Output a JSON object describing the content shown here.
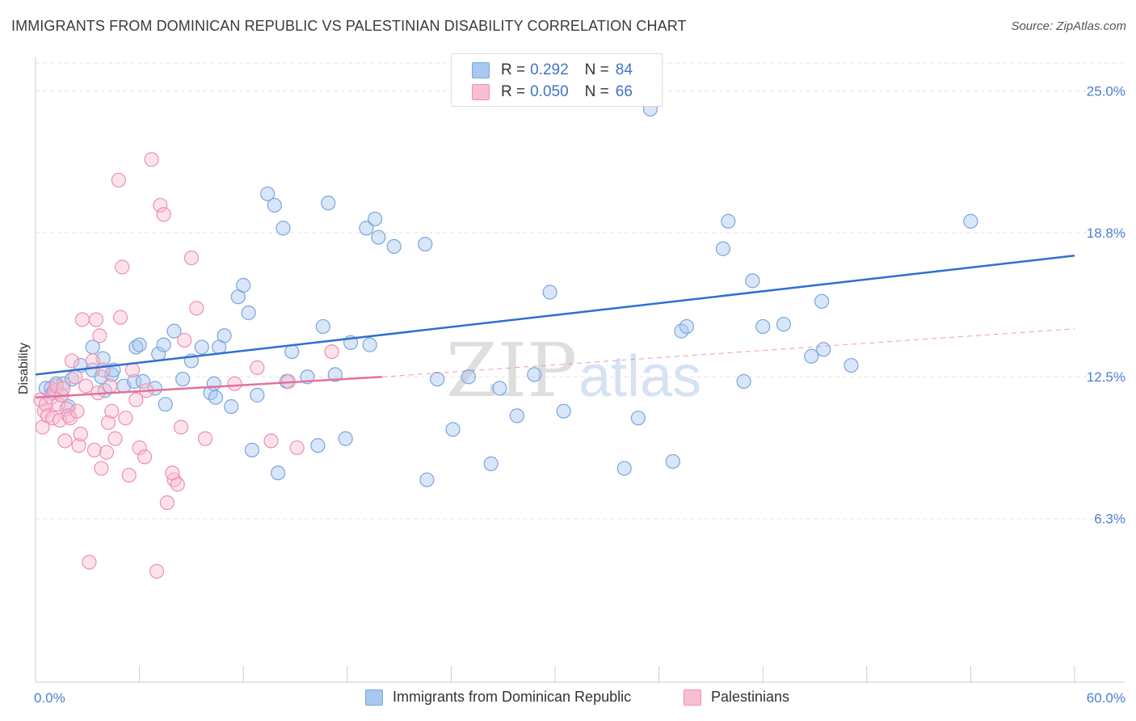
{
  "title": "IMMIGRANTS FROM DOMINICAN REPUBLIC VS PALESTINIAN DISABILITY CORRELATION CHART",
  "source": "Source: ZipAtlas.com",
  "watermark": {
    "zip": "ZIP",
    "atlas": "atlas"
  },
  "legend": {
    "rows": [
      {
        "r_label": "R =",
        "r_value": "0.292",
        "n_label": "N =",
        "n_value": "84",
        "color": "#a9c8f0",
        "border": "#7aa5df"
      },
      {
        "r_label": "R =",
        "r_value": "0.050",
        "n_label": "N =",
        "n_value": "66",
        "color": "#f8bfd2",
        "border": "#ee8fb1"
      }
    ]
  },
  "bottom_legend": [
    {
      "label": "Immigrants from Dominican Republic",
      "color": "#a9c8f0",
      "border": "#7aa5df"
    },
    {
      "label": "Palestinians",
      "color": "#f8bfd2",
      "border": "#ee8fb1"
    }
  ],
  "chart_data": {
    "type": "scatter",
    "title": "IMMIGRANTS FROM DOMINICAN REPUBLIC VS PALESTINIAN DISABILITY CORRELATION CHART",
    "xlabel": "",
    "ylabel": "Disability",
    "xlim": [
      0,
      60
    ],
    "ylim": [
      0,
      26.5
    ],
    "x_tick_labels": [
      "0.0%",
      "60.0%"
    ],
    "y_ticks": [
      6.3,
      12.5,
      18.8,
      25.0
    ],
    "y_tick_labels": [
      "6.3%",
      "12.5%",
      "18.8%",
      "25.0%"
    ],
    "grid": "horizontal dashed",
    "legend_position": "top-center",
    "series": [
      {
        "name": "Immigrants from Dominican Republic",
        "color": "#7aa5df",
        "fill": "#a9c8f0",
        "trend": {
          "x0": 0,
          "y0": 12.6,
          "x1": 60,
          "y1": 17.8,
          "color": "#2e6fd0"
        },
        "points": [
          [
            0.6,
            12.0
          ],
          [
            0.9,
            12.0
          ],
          [
            1.0,
            11.8
          ],
          [
            1.2,
            12.2
          ],
          [
            1.5,
            11.7
          ],
          [
            1.6,
            12.2
          ],
          [
            1.9,
            11.2
          ],
          [
            2.1,
            12.4
          ],
          [
            2.6,
            13.0
          ],
          [
            3.3,
            12.8
          ],
          [
            3.3,
            13.8
          ],
          [
            3.8,
            12.5
          ],
          [
            3.9,
            13.3
          ],
          [
            4.0,
            11.9
          ],
          [
            4.4,
            12.6
          ],
          [
            4.5,
            12.8
          ],
          [
            5.1,
            12.1
          ],
          [
            5.7,
            12.3
          ],
          [
            5.8,
            13.8
          ],
          [
            6.0,
            13.9
          ],
          [
            6.2,
            12.3
          ],
          [
            6.9,
            12.0
          ],
          [
            7.1,
            13.5
          ],
          [
            7.4,
            13.9
          ],
          [
            7.5,
            11.3
          ],
          [
            8.0,
            14.5
          ],
          [
            8.5,
            12.4
          ],
          [
            9.0,
            13.2
          ],
          [
            9.6,
            13.8
          ],
          [
            10.1,
            11.8
          ],
          [
            10.3,
            12.2
          ],
          [
            10.4,
            11.6
          ],
          [
            10.6,
            13.8
          ],
          [
            10.9,
            14.3
          ],
          [
            11.3,
            11.2
          ],
          [
            11.7,
            16.0
          ],
          [
            12.0,
            16.5
          ],
          [
            12.3,
            15.3
          ],
          [
            12.5,
            9.3
          ],
          [
            12.8,
            11.7
          ],
          [
            13.4,
            20.5
          ],
          [
            13.8,
            20.0
          ],
          [
            14.0,
            8.3
          ],
          [
            14.3,
            19.0
          ],
          [
            14.5,
            12.3
          ],
          [
            14.8,
            13.6
          ],
          [
            15.7,
            12.5
          ],
          [
            16.3,
            9.5
          ],
          [
            16.6,
            14.7
          ],
          [
            16.9,
            20.1
          ],
          [
            17.3,
            12.6
          ],
          [
            17.9,
            9.8
          ],
          [
            18.2,
            14.0
          ],
          [
            19.1,
            19.0
          ],
          [
            19.3,
            13.9
          ],
          [
            19.6,
            19.4
          ],
          [
            19.8,
            18.6
          ],
          [
            20.7,
            18.2
          ],
          [
            22.5,
            18.3
          ],
          [
            22.6,
            8.0
          ],
          [
            23.2,
            12.4
          ],
          [
            24.1,
            10.2
          ],
          [
            25.0,
            12.5
          ],
          [
            26.3,
            8.7
          ],
          [
            26.8,
            12.0
          ],
          [
            27.8,
            10.8
          ],
          [
            28.8,
            12.6
          ],
          [
            29.7,
            16.2
          ],
          [
            30.5,
            11.0
          ],
          [
            34.0,
            8.5
          ],
          [
            34.8,
            10.7
          ],
          [
            36.8,
            8.8
          ],
          [
            37.3,
            14.5
          ],
          [
            37.6,
            14.7
          ],
          [
            39.7,
            18.1
          ],
          [
            40.0,
            19.3
          ],
          [
            40.9,
            12.3
          ],
          [
            41.4,
            16.7
          ],
          [
            42.0,
            14.7
          ],
          [
            43.2,
            14.8
          ],
          [
            44.8,
            13.4
          ],
          [
            45.4,
            15.8
          ],
          [
            45.5,
            13.7
          ],
          [
            47.1,
            13.0
          ],
          [
            54.0,
            19.3
          ],
          [
            35.5,
            24.2
          ]
        ]
      },
      {
        "name": "Palestinians",
        "color": "#ee8fb1",
        "fill": "#f8bfd2",
        "trend": {
          "x0": 0,
          "y0": 11.6,
          "x1": 20,
          "y1": 12.5,
          "color": "#e4709c"
        },
        "trend_dashed": {
          "x0": 20,
          "y0": 12.5,
          "x1": 60,
          "y1": 14.6,
          "color": "#e4709c"
        },
        "points": [
          [
            0.3,
            11.5
          ],
          [
            0.4,
            10.3
          ],
          [
            0.5,
            11.0
          ],
          [
            0.6,
            11.3
          ],
          [
            0.7,
            10.8
          ],
          [
            0.9,
            11.6
          ],
          [
            1.0,
            10.7
          ],
          [
            1.1,
            11.9
          ],
          [
            1.2,
            12.1
          ],
          [
            1.3,
            11.3
          ],
          [
            1.4,
            10.6
          ],
          [
            1.5,
            11.7
          ],
          [
            1.6,
            12.0
          ],
          [
            1.7,
            9.7
          ],
          [
            1.8,
            11.1
          ],
          [
            1.9,
            10.8
          ],
          [
            2.0,
            10.7
          ],
          [
            2.1,
            13.2
          ],
          [
            2.3,
            12.5
          ],
          [
            2.4,
            11.0
          ],
          [
            2.5,
            9.5
          ],
          [
            2.6,
            10.0
          ],
          [
            2.7,
            15.0
          ],
          [
            2.9,
            12.1
          ],
          [
            3.1,
            4.4
          ],
          [
            3.3,
            13.2
          ],
          [
            3.4,
            9.3
          ],
          [
            3.5,
            15.0
          ],
          [
            3.6,
            11.8
          ],
          [
            3.7,
            14.3
          ],
          [
            3.8,
            8.5
          ],
          [
            3.9,
            12.8
          ],
          [
            4.1,
            9.2
          ],
          [
            4.2,
            10.5
          ],
          [
            4.3,
            12.1
          ],
          [
            4.4,
            11.0
          ],
          [
            4.6,
            9.8
          ],
          [
            4.8,
            21.1
          ],
          [
            4.9,
            15.1
          ],
          [
            5.0,
            17.3
          ],
          [
            5.2,
            10.7
          ],
          [
            5.4,
            8.2
          ],
          [
            5.6,
            12.8
          ],
          [
            5.8,
            11.5
          ],
          [
            6.0,
            9.4
          ],
          [
            6.3,
            9.0
          ],
          [
            6.4,
            11.9
          ],
          [
            6.7,
            22.0
          ],
          [
            7.0,
            4.0
          ],
          [
            7.2,
            20.0
          ],
          [
            7.4,
            19.6
          ],
          [
            7.6,
            7.0
          ],
          [
            8.0,
            8.0
          ],
          [
            8.2,
            7.8
          ],
          [
            8.4,
            10.3
          ],
          [
            8.6,
            14.1
          ],
          [
            9.0,
            17.7
          ],
          [
            9.3,
            15.5
          ],
          [
            9.8,
            9.8
          ],
          [
            7.9,
            8.3
          ],
          [
            11.5,
            12.2
          ],
          [
            12.8,
            12.9
          ],
          [
            13.6,
            9.7
          ],
          [
            14.6,
            12.3
          ],
          [
            15.1,
            9.4
          ],
          [
            17.1,
            13.6
          ]
        ]
      }
    ]
  }
}
